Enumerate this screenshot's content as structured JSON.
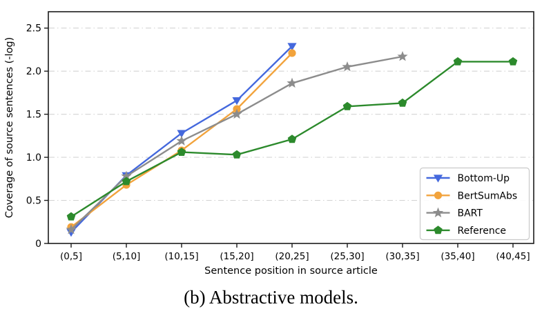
{
  "caption": "(b) Abstractive models.",
  "chart_data": {
    "type": "line",
    "title": "",
    "xlabel": "Sentence position in source article",
    "ylabel": "Coverage of source sentences (-log)",
    "categories": [
      "(0,5]",
      "(5,10]",
      "(10,15]",
      "(15,20]",
      "(20,25]",
      "(25,30]",
      "(30,35]",
      "(35,40]",
      "(40,45]"
    ],
    "yticks": [
      {
        "value": 0,
        "label": "0"
      },
      {
        "value": 0.5,
        "label": "0.5"
      },
      {
        "value": 1.0,
        "label": "1.0"
      },
      {
        "value": 1.5,
        "label": "1.5"
      },
      {
        "value": 2.0,
        "label": "2.0"
      },
      {
        "value": 2.5,
        "label": "2.5"
      }
    ],
    "ylim": [
      0,
      2.69
    ],
    "grid": "horizontal-dash-dot",
    "grid_color": "#d4d4d4",
    "axis_color": "#1a1a1a",
    "legend_position": "lower right",
    "series": [
      {
        "name": "Bottom-Up",
        "color": "#4468dd",
        "marker": "triangle-down",
        "values": [
          0.13,
          0.79,
          1.28,
          1.66,
          2.29,
          null,
          null,
          null,
          null
        ]
      },
      {
        "name": "BertSumAbs",
        "color": "#f2a33c",
        "marker": "circle",
        "values": [
          0.19,
          0.68,
          1.08,
          1.56,
          2.21,
          null,
          null,
          null,
          null
        ]
      },
      {
        "name": "BART",
        "color": "#8c8c8c",
        "marker": "star",
        "values": [
          0.16,
          0.78,
          1.19,
          1.5,
          1.86,
          2.05,
          2.17,
          null,
          null
        ]
      },
      {
        "name": "Reference",
        "color": "#2c8a2c",
        "marker": "pentagon",
        "values": [
          0.31,
          0.72,
          1.06,
          1.03,
          1.21,
          1.59,
          1.63,
          2.11,
          2.11
        ]
      }
    ]
  }
}
